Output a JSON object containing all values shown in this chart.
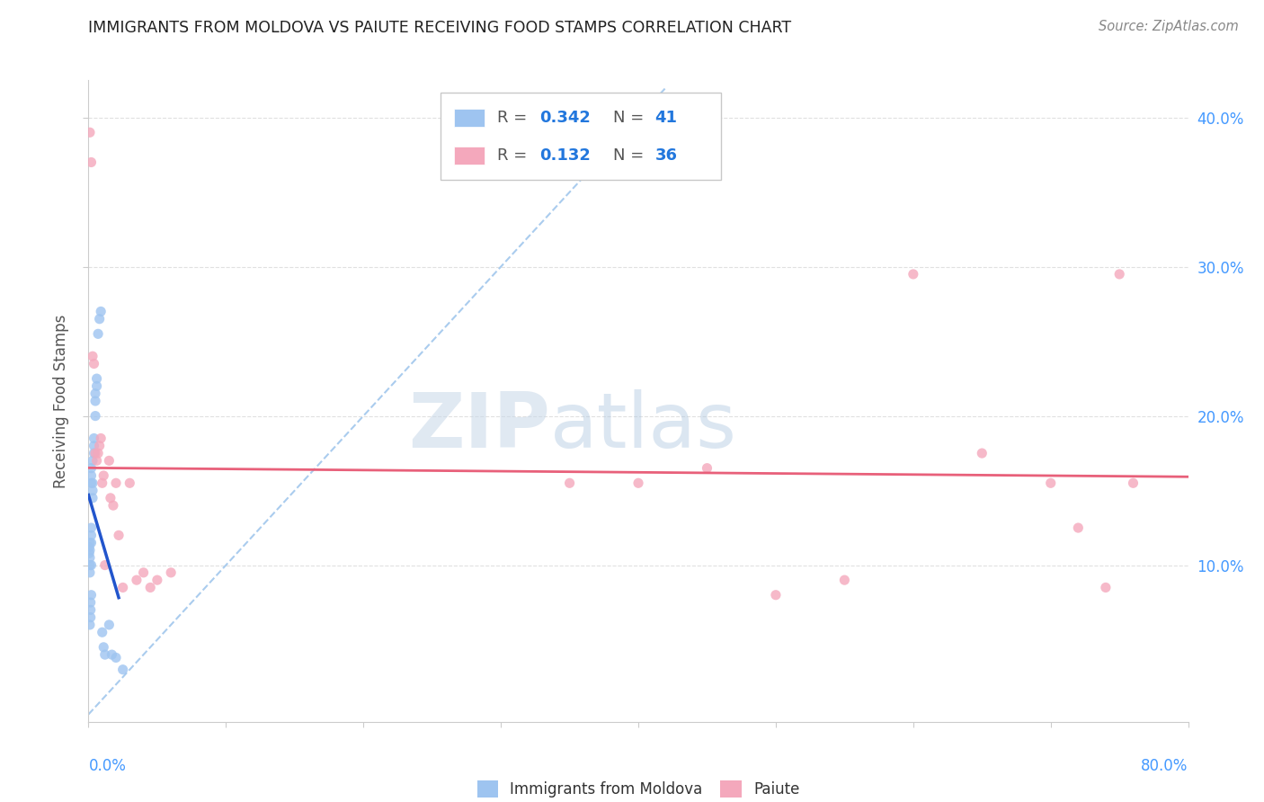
{
  "title": "IMMIGRANTS FROM MOLDOVA VS PAIUTE RECEIVING FOOD STAMPS CORRELATION CHART",
  "source": "Source: ZipAtlas.com",
  "ylabel": "Receiving Food Stamps",
  "xlim": [
    0,
    0.8
  ],
  "ylim": [
    -0.005,
    0.425
  ],
  "yticks": [
    0.1,
    0.2,
    0.3,
    0.4
  ],
  "ytick_labels": [
    "10.0%",
    "20.0%",
    "30.0%",
    "40.0%"
  ],
  "legend_r1": "0.342",
  "legend_n1": "41",
  "legend_r2": "0.132",
  "legend_n2": "36",
  "moldova_color": "#9ec4f0",
  "paiute_color": "#f4a8bc",
  "moldova_line_color": "#2255cc",
  "paiute_line_color": "#e8607a",
  "diag_color": "#aaccee",
  "marker_size": 65,
  "moldova_x": [
    0.0005,
    0.0005,
    0.001,
    0.001,
    0.001,
    0.001,
    0.001,
    0.001,
    0.0015,
    0.0015,
    0.0015,
    0.002,
    0.002,
    0.002,
    0.002,
    0.002,
    0.002,
    0.002,
    0.002,
    0.003,
    0.003,
    0.003,
    0.003,
    0.004,
    0.004,
    0.004,
    0.005,
    0.005,
    0.005,
    0.006,
    0.006,
    0.007,
    0.008,
    0.009,
    0.01,
    0.011,
    0.012,
    0.015,
    0.017,
    0.02,
    0.025
  ],
  "moldova_y": [
    0.108,
    0.112,
    0.095,
    0.1,
    0.105,
    0.11,
    0.115,
    0.06,
    0.065,
    0.07,
    0.075,
    0.08,
    0.1,
    0.115,
    0.12,
    0.125,
    0.155,
    0.16,
    0.165,
    0.145,
    0.15,
    0.155,
    0.17,
    0.18,
    0.175,
    0.185,
    0.2,
    0.21,
    0.215,
    0.22,
    0.225,
    0.255,
    0.265,
    0.27,
    0.055,
    0.045,
    0.04,
    0.06,
    0.04,
    0.038,
    0.03
  ],
  "paiute_x": [
    0.001,
    0.002,
    0.003,
    0.004,
    0.005,
    0.006,
    0.007,
    0.008,
    0.009,
    0.01,
    0.011,
    0.012,
    0.015,
    0.016,
    0.018,
    0.02,
    0.022,
    0.025,
    0.03,
    0.035,
    0.04,
    0.045,
    0.05,
    0.06,
    0.35,
    0.4,
    0.45,
    0.5,
    0.55,
    0.6,
    0.65,
    0.7,
    0.72,
    0.74,
    0.75,
    0.76
  ],
  "paiute_y": [
    0.39,
    0.37,
    0.24,
    0.235,
    0.175,
    0.17,
    0.175,
    0.18,
    0.185,
    0.155,
    0.16,
    0.1,
    0.17,
    0.145,
    0.14,
    0.155,
    0.12,
    0.085,
    0.155,
    0.09,
    0.095,
    0.085,
    0.09,
    0.095,
    0.155,
    0.155,
    0.165,
    0.08,
    0.09,
    0.295,
    0.175,
    0.155,
    0.125,
    0.085,
    0.295,
    0.155
  ],
  "watermark_zip": "ZIP",
  "watermark_atlas": "atlas",
  "background_color": "#ffffff",
  "grid_color": "#e0e0e0"
}
